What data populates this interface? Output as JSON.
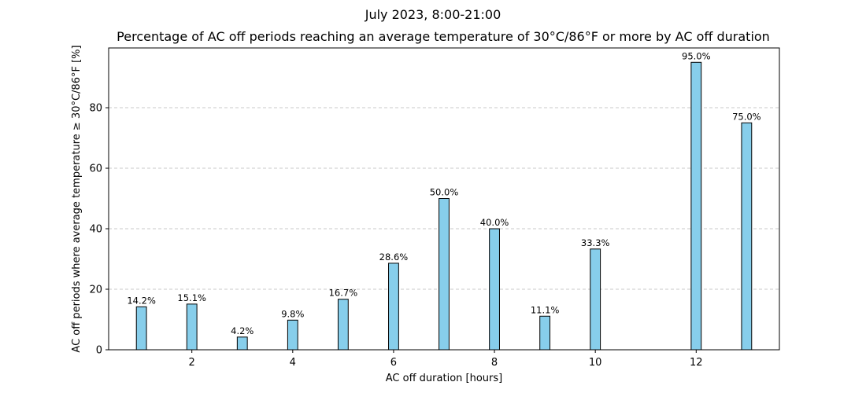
{
  "chart_data": {
    "type": "bar",
    "suptitle": "July 2023, 8:00-21:00",
    "title": "Percentage of AC off periods reaching an average temperature of 30°C/86°F or more by AC off duration",
    "xlabel": "AC off duration [hours]",
    "ylabel": "AC off periods where average temperature ≥ 30°C/86°F [%]",
    "x": [
      1,
      2,
      3,
      4,
      5,
      6,
      7,
      8,
      9,
      10,
      12,
      13
    ],
    "values": [
      14.2,
      15.1,
      4.2,
      9.8,
      16.7,
      28.6,
      50.0,
      40.0,
      11.1,
      33.3,
      95.0,
      75.0
    ],
    "data_labels": [
      "14.2%",
      "15.1%",
      "4.2%",
      "9.8%",
      "16.7%",
      "28.6%",
      "50.0%",
      "40.0%",
      "11.1%",
      "33.3%",
      "95.0%",
      "75.0%"
    ],
    "xticks": [
      2,
      4,
      6,
      8,
      10,
      12
    ],
    "yticks": [
      0,
      20,
      40,
      60,
      80
    ],
    "xlim": [
      0.35,
      13.65
    ],
    "ylim": [
      0,
      99.75
    ],
    "bar_color": "#87CEEB",
    "edge_color": "#000000",
    "grid": "y-dashed"
  }
}
